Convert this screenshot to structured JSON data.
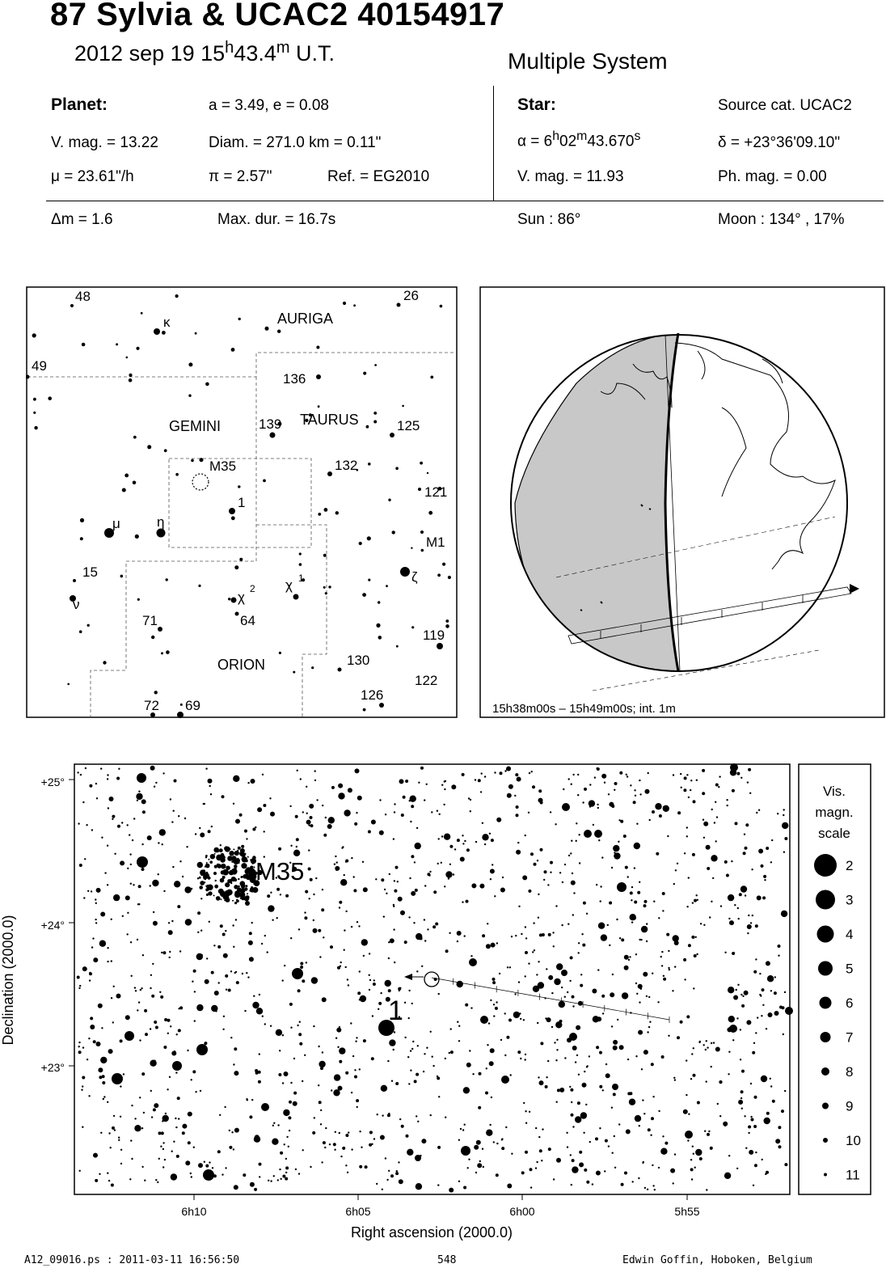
{
  "header": {
    "title": "87 Sylvia  &  UCAC2 40154917",
    "date_prefix": "2012 sep 19  15",
    "date_h": "h",
    "date_min": "43.4",
    "date_m": "m",
    "date_suffix": " U.T.",
    "subtitle": "Multiple System"
  },
  "planet": {
    "heading": "Planet:",
    "orbit": "a = 3.49, e = 0.08",
    "vmag": "V. mag. = 13.22",
    "diam": "Diam. = 271.0 km = 0.11\"",
    "mu": "μ =  23.61\"/h",
    "pi": "π =  2.57\"",
    "ref": "Ref. = EG2010"
  },
  "star": {
    "heading": "Star:",
    "source": "Source cat.  UCAC2",
    "alpha_prefix": "α =  6",
    "alpha_h": "h",
    "alpha_mid": "02",
    "alpha_m": "m",
    "alpha_sec": "43.670",
    "alpha_s": "s",
    "delta": "δ = +23°36'09.10\"",
    "vmag": "V. mag. = 11.93",
    "phmag": "Ph. mag. =  0.00"
  },
  "event": {
    "dm": "Δm = 1.6",
    "maxdur": "Max. dur. = 16.7s",
    "sun": "Sun :  86°",
    "moon": "Moon : 134° , 17%"
  },
  "finder": {
    "constellations": [
      "AURIGA",
      "GEMINI",
      "TAURUS",
      "ORION"
    ],
    "labels": [
      "48",
      "26",
      "κ",
      "49",
      "136",
      "139",
      "125",
      "M35",
      "132",
      "121",
      "1",
      "μ",
      "η",
      "M1",
      "15",
      "ν",
      "ζ",
      "χ",
      "2",
      "χ",
      "1",
      "71",
      "64",
      "119",
      "130",
      "122",
      "126",
      "72",
      "69"
    ]
  },
  "globe": {
    "caption": "15h38m00s – 15h49m00s; int.  1m"
  },
  "detail_chart": {
    "ylabel": "Declination (2000.0)",
    "xlabel": "Right ascension (2000.0)",
    "yticks": [
      "+25°",
      "+24°",
      "+23°"
    ],
    "xticks": [
      "6h10",
      "6h05",
      "6h00",
      "5h55"
    ],
    "star_label": "1",
    "cluster_label": "M35"
  },
  "legend": {
    "title1": "Vis.",
    "title2": "magn.",
    "title3": "scale",
    "mags": [
      "2",
      "3",
      "4",
      "5",
      "6",
      "7",
      "8",
      "9",
      "10",
      "11"
    ]
  },
  "footer": {
    "file": "A12_09016.ps : 2011-03-11 16:56:50",
    "page": "548",
    "author": "Edwin Goffin, Hoboken, Belgium"
  }
}
